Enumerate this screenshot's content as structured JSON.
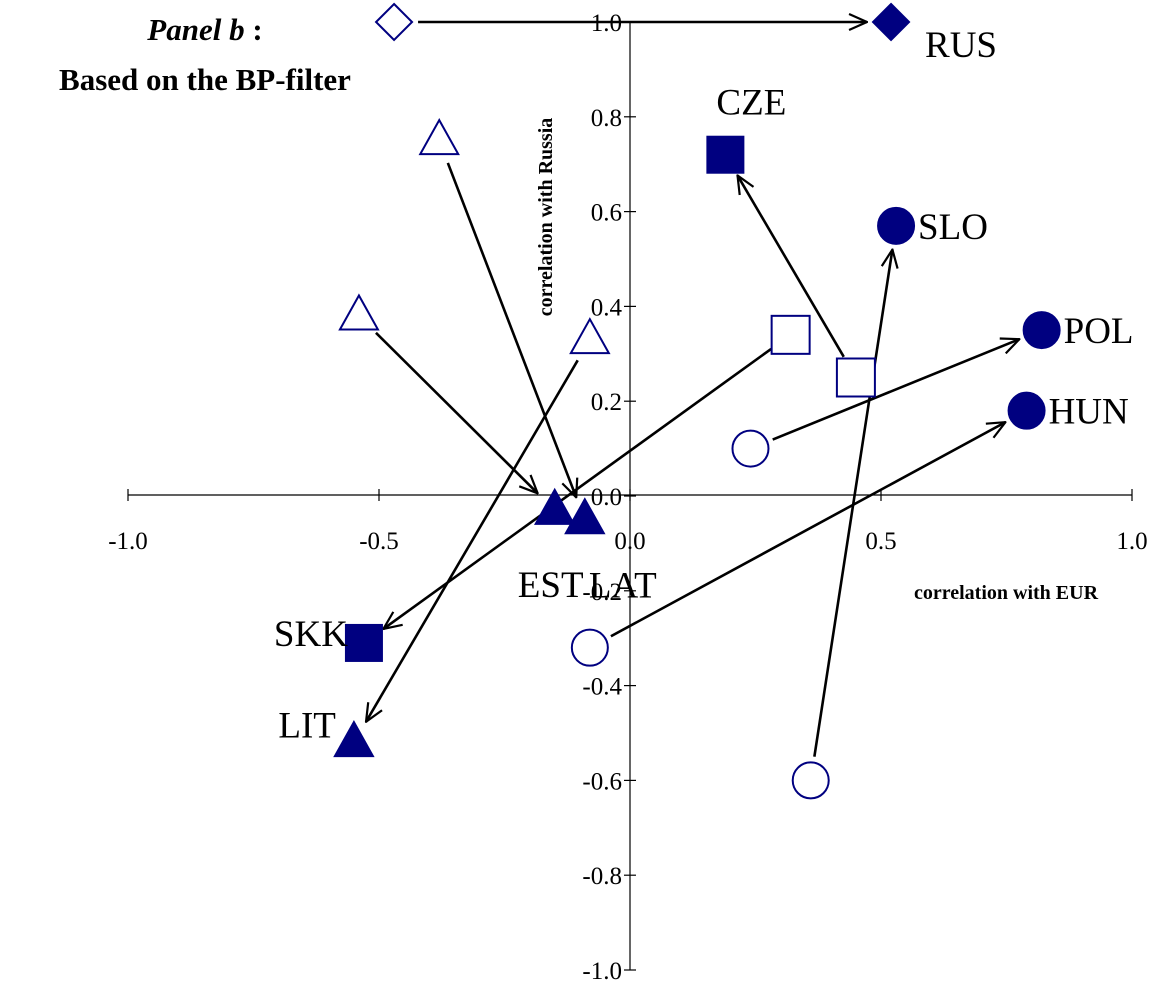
{
  "title": {
    "line1_italic": "Panel b",
    "line1_rest": " :",
    "line2": "Based on the BP-filter"
  },
  "colors": {
    "marker": "#000080",
    "axis": "#000000",
    "arrow": "#000000",
    "background": "#ffffff"
  },
  "chart_data": {
    "type": "scatter",
    "xlabel": "correlation with EUR",
    "ylabel": "correlation with Russia",
    "xlim": [
      -1.0,
      1.0
    ],
    "ylim": [
      -1.0,
      1.0
    ],
    "x_ticks": [
      "-1.0",
      "-0.5",
      "0.0",
      "0.5",
      "1.0"
    ],
    "x_tick_values": [
      -1.0,
      -0.5,
      0.0,
      0.5,
      1.0
    ],
    "y_ticks": [
      "-1.0",
      "-0.8",
      "-0.6",
      "-0.4",
      "-0.2",
      "0.0",
      "0.2",
      "0.4",
      "0.6",
      "0.8",
      "1.0"
    ],
    "y_tick_values": [
      -1.0,
      -0.8,
      -0.6,
      -0.4,
      -0.2,
      0.0,
      0.2,
      0.4,
      0.6,
      0.8,
      1.0
    ],
    "grid": false,
    "legend": "none",
    "notes": "Hollow markers = earlier values, filled markers = later values; arrows point from hollow to filled.",
    "points": [
      {
        "label": "RUS",
        "shape": "diamond",
        "from": [
          -0.47,
          1.0
        ],
        "to": [
          0.52,
          1.0
        ]
      },
      {
        "label": "CZE",
        "shape": "square",
        "from": [
          0.45,
          0.25
        ],
        "to": [
          0.19,
          0.72
        ]
      },
      {
        "label": "SLO",
        "shape": "circle",
        "from": [
          0.36,
          -0.6
        ],
        "to": [
          0.53,
          0.57
        ]
      },
      {
        "label": "POL",
        "shape": "circle",
        "from": [
          0.24,
          0.1
        ],
        "to": [
          0.82,
          0.35
        ]
      },
      {
        "label": "HUN",
        "shape": "circle",
        "from": [
          -0.08,
          -0.32
        ],
        "to": [
          0.79,
          0.18
        ]
      },
      {
        "label": "SKK",
        "shape": "square",
        "from": [
          0.32,
          0.34
        ],
        "to": [
          -0.53,
          -0.31
        ]
      },
      {
        "label": "EST",
        "shape": "triangle",
        "from": [
          -0.54,
          0.38
        ],
        "to": [
          -0.15,
          -0.03
        ]
      },
      {
        "label": "LAT",
        "shape": "triangle",
        "from": [
          -0.38,
          0.75
        ],
        "to": [
          -0.09,
          -0.05
        ]
      },
      {
        "label": "LIT",
        "shape": "triangle",
        "from": [
          -0.08,
          0.33
        ],
        "to": [
          -0.55,
          -0.52
        ]
      }
    ]
  }
}
